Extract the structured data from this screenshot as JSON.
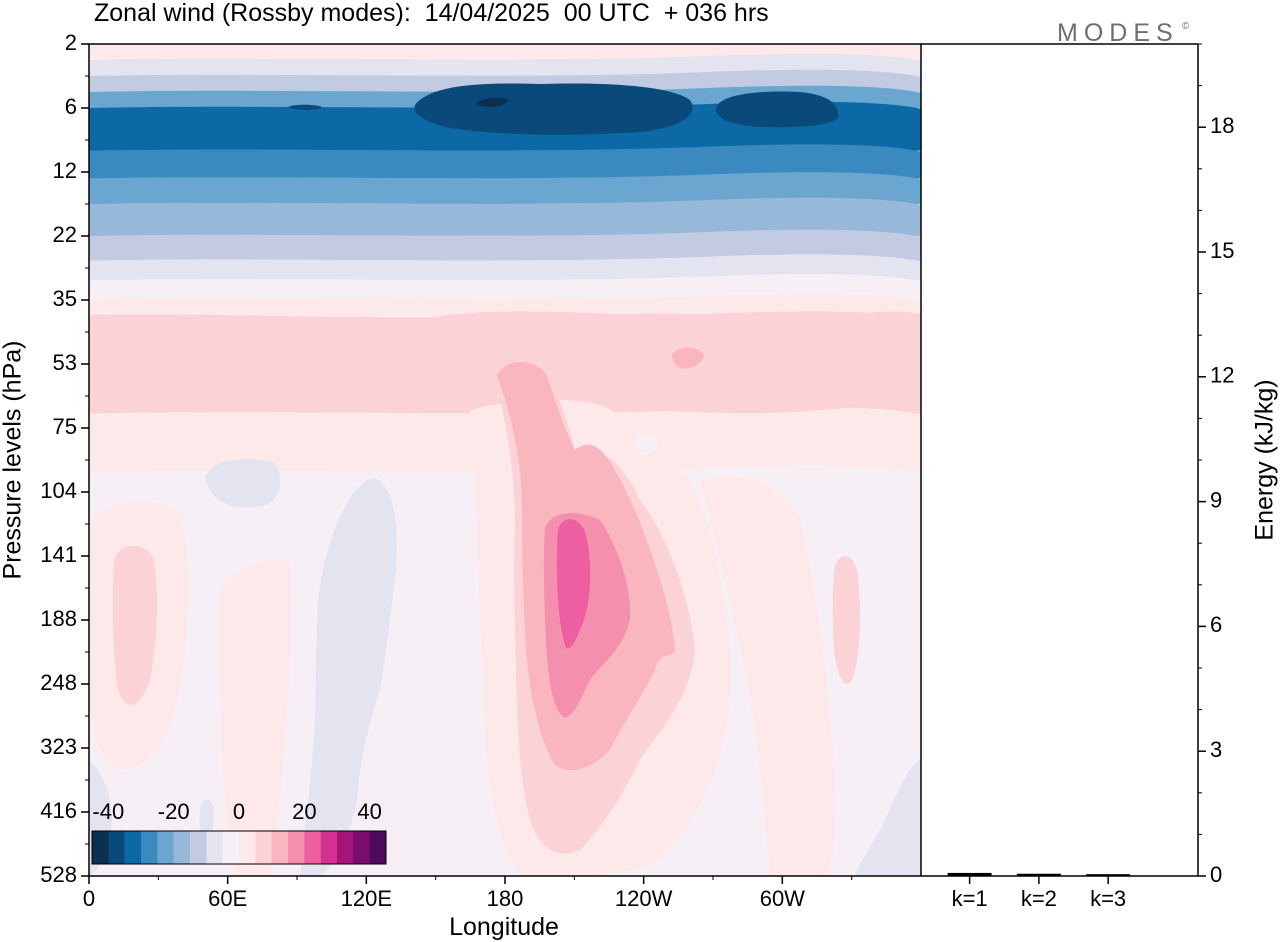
{
  "title": "Zonal wind (Rossby modes):  14/04/2025  00 UTC  + 036 hrs",
  "brand": "MODES",
  "brand_mark": "©",
  "chart_data": [
    {
      "type": "heatmap",
      "title": "Zonal wind (Rossby modes):  14/04/2025  00 UTC  + 036 hrs",
      "xlabel": "Longitude",
      "ylabel": "Pressure levels (hPa)",
      "x_ticks": [
        "0",
        "60E",
        "120E",
        "180",
        "120W",
        "60W"
      ],
      "y_ticks": [
        "2",
        "6",
        "12",
        "22",
        "35",
        "53",
        "75",
        "104",
        "141",
        "188",
        "248",
        "323",
        "416",
        "528"
      ],
      "colorbar": {
        "tick_labels": [
          "-40",
          "-20",
          "0",
          "20",
          "40"
        ],
        "colors": [
          "#0b2f4f",
          "#0a4a7a",
          "#0b6aa6",
          "#3a8ac0",
          "#6aa6cf",
          "#98b8d9",
          "#c3cbe3",
          "#e4e4f0",
          "#f6f0f6",
          "#fde9ea",
          "#fbd2d5",
          "#f9b6bf",
          "#f58fae",
          "#ee5fa2",
          "#d43090",
          "#a51479",
          "#7a0c6e",
          "#4e0a5e"
        ]
      },
      "bands": [
        {
          "level": "2",
          "color": "#fde9ea"
        },
        {
          "level": "3",
          "color": "#e4e4f0"
        },
        {
          "level": "4",
          "color": "#c3cbe3"
        },
        {
          "level": "5",
          "color": "#6aa6cf"
        },
        {
          "level": "6",
          "color": "#0b6aa6"
        },
        {
          "level": "10",
          "color": "#3a8ac0"
        },
        {
          "level": "13",
          "color": "#6aa6cf"
        },
        {
          "level": "17",
          "color": "#98b8d9"
        },
        {
          "level": "22",
          "color": "#c3cbe3"
        },
        {
          "level": "27",
          "color": "#e4e4f0"
        },
        {
          "level": "31",
          "color": "#f6f0f6"
        },
        {
          "level": "35",
          "color": "#fde9ea"
        },
        {
          "level": "40",
          "color": "#fbd2d5"
        },
        {
          "level": "70",
          "color": "#fde9ea"
        },
        {
          "level": "95",
          "color": "#f6f0f6"
        }
      ],
      "features": [
        {
          "name": "core-6hpa-a",
          "lon": 76,
          "level": 6,
          "color": "#0a4a7a"
        },
        {
          "name": "core-6hpa-b",
          "lon": 178,
          "level": 6,
          "color": "#0a4a7a"
        },
        {
          "name": "core-6hpa-c",
          "lon": 277,
          "level": 6,
          "color": "#0a4a7a"
        },
        {
          "name": "jet-180",
          "lon": 190,
          "level": 150,
          "color": "#f9b6bf"
        },
        {
          "name": "jet-core",
          "lon": 199,
          "level": 150,
          "color": "#ee5fa2"
        }
      ]
    },
    {
      "type": "bar",
      "categories": [
        "k=1",
        "k=2",
        "k=3"
      ],
      "values": [
        0.05,
        0.03,
        0.02
      ],
      "ylabel": "Energy (kJ/kg)",
      "y_ticks": [
        "0",
        "3",
        "6",
        "9",
        "12",
        "15",
        "18"
      ],
      "ylim": [
        0,
        20
      ]
    }
  ]
}
